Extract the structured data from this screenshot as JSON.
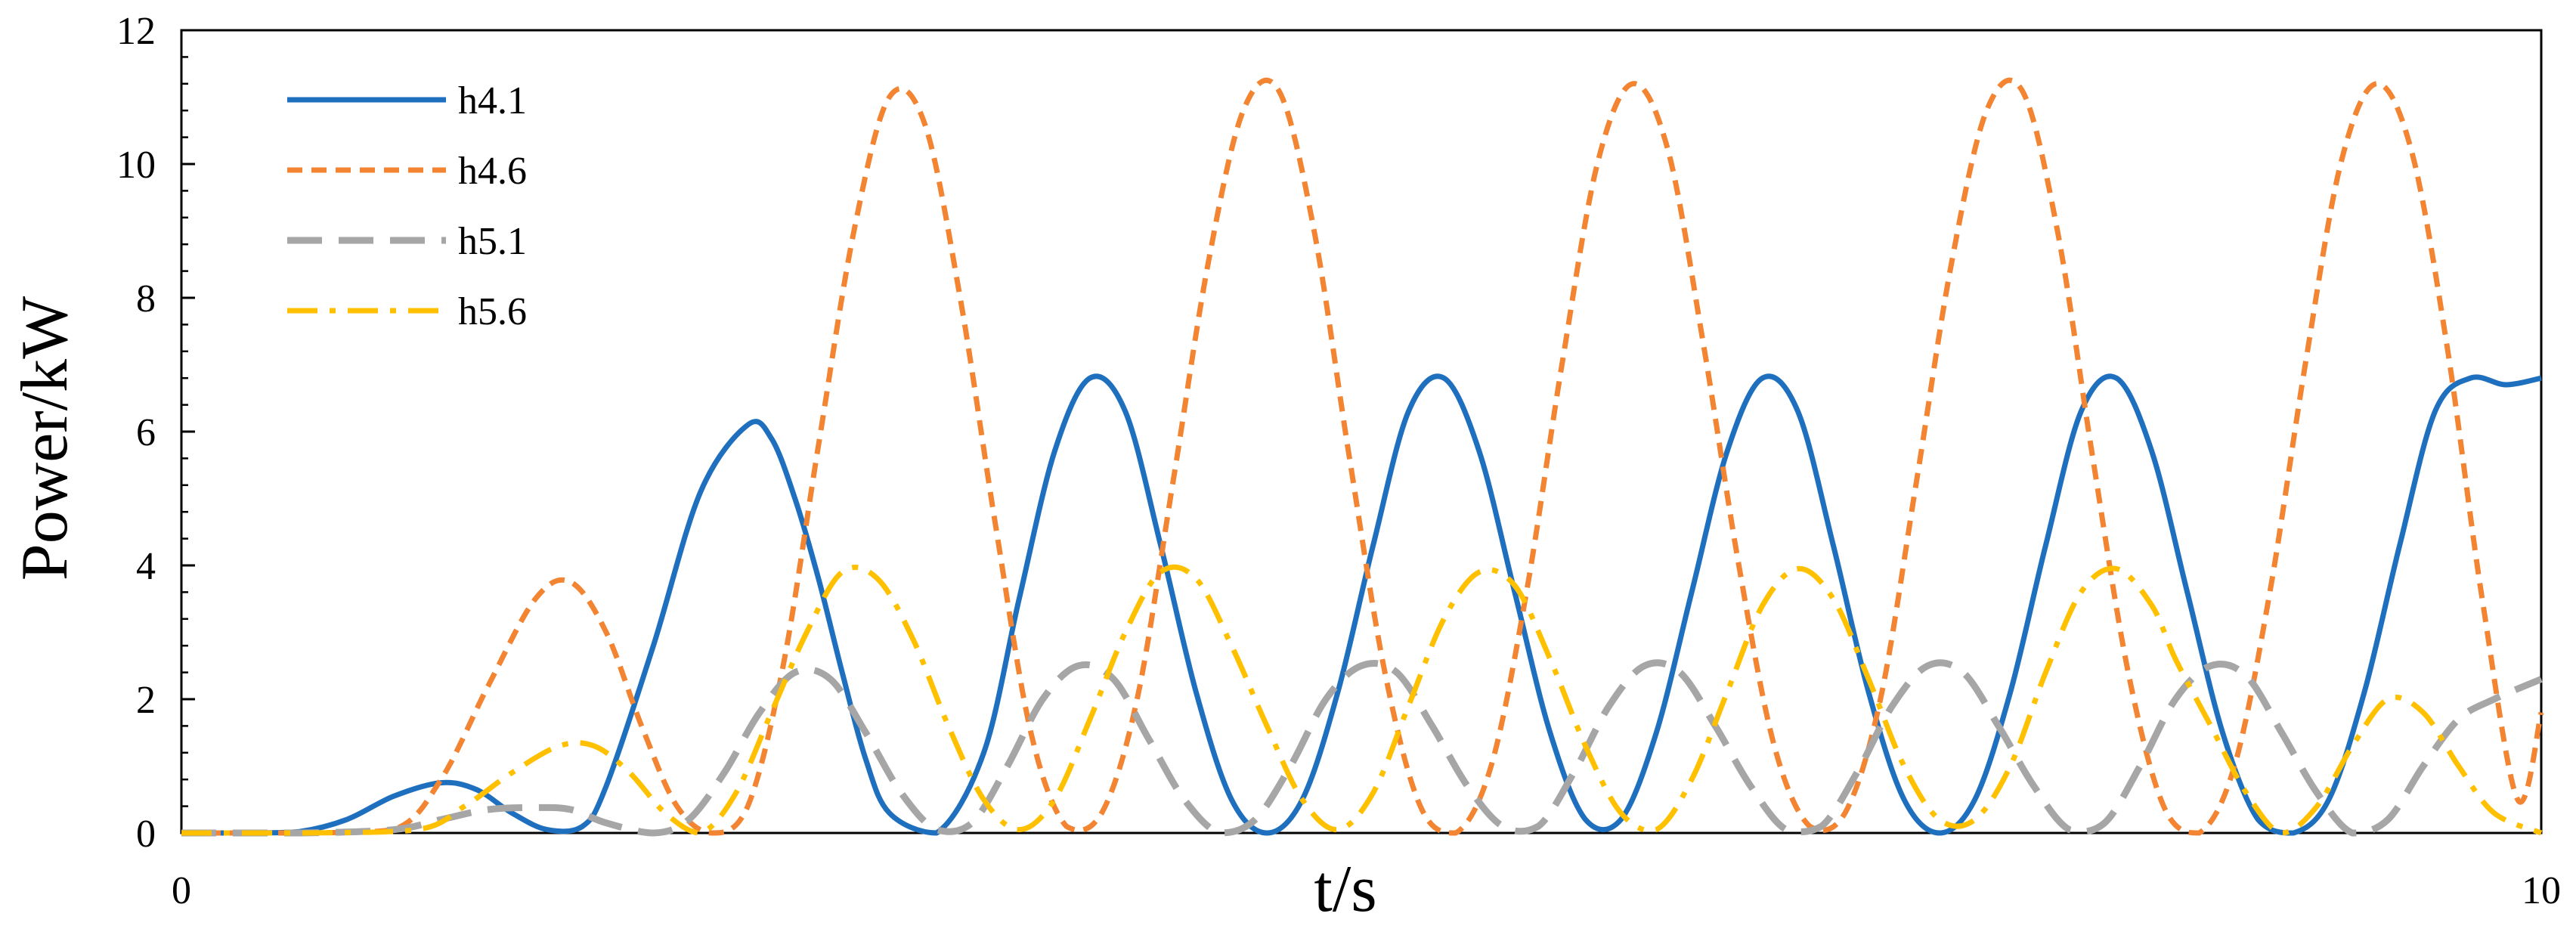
{
  "chart_data": {
    "type": "line",
    "title": "",
    "xlabel": "t/s",
    "ylabel": "Power/kW",
    "xlim": [
      0,
      10
    ],
    "ylim": [
      0,
      12
    ],
    "x_ticks": [
      0,
      10
    ],
    "y_ticks": [
      0,
      2,
      4,
      6,
      8,
      10,
      12
    ],
    "x_tick_labels": [
      "0",
      "10"
    ],
    "y_tick_labels": [
      "0",
      "2",
      "4",
      "6",
      "8",
      "10",
      "12"
    ],
    "y_minor_step": 0.4,
    "grid": false,
    "legend_position": "top-left",
    "series": [
      {
        "name": "h4.1",
        "color": "#1f6fbf",
        "dash": "solid",
        "x": [
          0,
          0.3,
          0.5,
          0.7,
          0.9,
          1.1,
          1.25,
          1.4,
          1.55,
          1.7,
          1.8,
          2.0,
          2.2,
          2.4,
          2.5,
          2.6,
          2.7,
          2.8,
          2.9,
          3.0,
          3.2,
          3.4,
          3.55,
          3.7,
          3.85,
          4.0,
          4.15,
          4.3,
          4.45,
          4.6,
          4.75,
          4.9,
          5.05,
          5.2,
          5.35,
          5.5,
          5.65,
          5.8,
          5.95,
          6.1,
          6.25,
          6.4,
          6.55,
          6.7,
          6.85,
          7.0,
          7.15,
          7.3,
          7.45,
          7.6,
          7.75,
          7.9,
          8.05,
          8.2,
          8.35,
          8.5,
          8.65,
          8.8,
          8.95,
          9.1,
          9.25,
          9.4,
          9.55,
          9.7,
          9.85,
          10.0
        ],
        "values": [
          0,
          0,
          0.02,
          0.2,
          0.55,
          0.75,
          0.65,
          0.3,
          0.05,
          0.1,
          0.7,
          2.8,
          5.1,
          6.1,
          5.9,
          5.0,
          3.8,
          2.4,
          1.1,
          0.3,
          0.0,
          1.2,
          3.5,
          5.7,
          6.8,
          6.3,
          4.3,
          2.1,
          0.5,
          0.0,
          0.5,
          2.1,
          4.3,
          6.3,
          6.8,
          5.7,
          3.6,
          1.5,
          0.2,
          0.2,
          1.5,
          3.6,
          5.7,
          6.8,
          6.3,
          4.3,
          2.1,
          0.5,
          0.0,
          0.5,
          2.1,
          4.3,
          6.3,
          6.8,
          5.7,
          3.6,
          1.5,
          0.2,
          0.0,
          0.5,
          2.1,
          4.3,
          6.3,
          6.8,
          6.7,
          6.8
        ]
      },
      {
        "name": "h4.6",
        "color": "#f28432",
        "dash": "short-dash",
        "x": [
          0,
          0.5,
          0.9,
          1.1,
          1.3,
          1.5,
          1.65,
          1.8,
          1.95,
          2.1,
          2.25,
          2.4,
          2.55,
          2.7,
          2.85,
          3.0,
          3.15,
          3.3,
          3.45,
          3.6,
          3.75,
          3.9,
          4.05,
          4.2,
          4.35,
          4.5,
          4.65,
          4.8,
          4.95,
          5.1,
          5.25,
          5.4,
          5.55,
          5.7,
          5.85,
          6.0,
          6.15,
          6.3,
          6.45,
          6.6,
          6.75,
          6.9,
          7.05,
          7.2,
          7.35,
          7.5,
          7.65,
          7.8,
          7.95,
          8.1,
          8.25,
          8.4,
          8.55,
          8.7,
          8.85,
          9.0,
          9.15,
          9.3,
          9.45,
          9.6,
          9.75,
          9.9,
          10.0
        ],
        "values": [
          0,
          0,
          0.05,
          0.8,
          2.2,
          3.5,
          3.75,
          3.0,
          1.6,
          0.4,
          0.0,
          0.4,
          2.5,
          5.8,
          9.0,
          11.0,
          10.6,
          8.0,
          4.6,
          1.5,
          0.1,
          0.3,
          2.0,
          5.2,
          8.5,
          10.8,
          11.1,
          9.0,
          5.6,
          2.4,
          0.4,
          0.0,
          1.0,
          3.6,
          7.0,
          10.0,
          11.2,
          10.2,
          7.3,
          4.0,
          1.3,
          0.1,
          0.3,
          2.0,
          5.2,
          8.5,
          10.8,
          11.1,
          9.0,
          5.6,
          2.4,
          0.4,
          0.0,
          1.0,
          3.6,
          7.0,
          10.0,
          11.2,
          10.2,
          7.3,
          3.5,
          0.5,
          1.8
        ]
      },
      {
        "name": "h5.1",
        "color": "#a6a6a6",
        "dash": "long-dash",
        "x": [
          0,
          0.5,
          0.9,
          1.1,
          1.3,
          1.5,
          1.65,
          1.8,
          2.0,
          2.15,
          2.3,
          2.45,
          2.6,
          2.75,
          2.9,
          3.05,
          3.2,
          3.35,
          3.5,
          3.65,
          3.8,
          3.95,
          4.1,
          4.25,
          4.4,
          4.55,
          4.7,
          4.85,
          5.0,
          5.15,
          5.3,
          5.45,
          5.6,
          5.75,
          5.9,
          6.05,
          6.2,
          6.35,
          6.5,
          6.65,
          6.8,
          6.95,
          7.1,
          7.25,
          7.4,
          7.55,
          7.7,
          7.85,
          8.0,
          8.15,
          8.3,
          8.45,
          8.6,
          8.75,
          8.9,
          9.05,
          9.2,
          9.35,
          9.5,
          9.65,
          9.8,
          10.0
        ],
        "values": [
          0,
          0,
          0.05,
          0.2,
          0.35,
          0.38,
          0.35,
          0.15,
          0.0,
          0.2,
          0.9,
          1.8,
          2.4,
          2.3,
          1.5,
          0.6,
          0.05,
          0.15,
          1.0,
          2.0,
          2.5,
          2.3,
          1.4,
          0.5,
          0.0,
          0.2,
          1.0,
          2.0,
          2.5,
          2.4,
          1.6,
          0.7,
          0.1,
          0.1,
          0.9,
          1.9,
          2.5,
          2.4,
          1.6,
          0.7,
          0.05,
          0.1,
          0.9,
          1.9,
          2.5,
          2.4,
          1.6,
          0.7,
          0.05,
          0.15,
          1.0,
          2.0,
          2.5,
          2.35,
          1.5,
          0.6,
          0.0,
          0.2,
          1.0,
          1.7,
          2.0,
          2.3
        ]
      },
      {
        "name": "h5.6",
        "color": "#ffc000",
        "dash": "dash-dot",
        "x": [
          0,
          0.5,
          1.0,
          1.2,
          1.4,
          1.6,
          1.75,
          1.9,
          2.05,
          2.2,
          2.35,
          2.5,
          2.65,
          2.8,
          2.95,
          3.1,
          3.25,
          3.4,
          3.55,
          3.7,
          3.85,
          4.0,
          4.15,
          4.3,
          4.45,
          4.6,
          4.75,
          4.9,
          5.05,
          5.2,
          5.35,
          5.5,
          5.65,
          5.8,
          5.95,
          6.1,
          6.25,
          6.4,
          6.55,
          6.7,
          6.85,
          7.0,
          7.15,
          7.3,
          7.45,
          7.6,
          7.75,
          7.9,
          8.05,
          8.2,
          8.35,
          8.45,
          8.6,
          8.75,
          8.9,
          9.05,
          9.2,
          9.35,
          9.5,
          9.65,
          9.8,
          10.0
        ],
        "values": [
          0,
          0,
          0.05,
          0.4,
          0.9,
          1.3,
          1.3,
          0.9,
          0.3,
          0.0,
          0.6,
          1.8,
          3.0,
          3.9,
          3.8,
          2.9,
          1.6,
          0.5,
          0.05,
          0.5,
          1.7,
          3.0,
          3.9,
          3.8,
          2.8,
          1.6,
          0.5,
          0.05,
          0.6,
          1.9,
          3.2,
          3.9,
          3.7,
          2.6,
          1.3,
          0.3,
          0.05,
          0.8,
          2.1,
          3.4,
          3.95,
          3.5,
          2.3,
          1.0,
          0.2,
          0.2,
          1.0,
          2.4,
          3.6,
          3.95,
          3.4,
          2.6,
          1.6,
          0.6,
          0.0,
          0.4,
          1.3,
          2.0,
          1.8,
          1.0,
          0.3,
          0.0
        ]
      }
    ]
  }
}
